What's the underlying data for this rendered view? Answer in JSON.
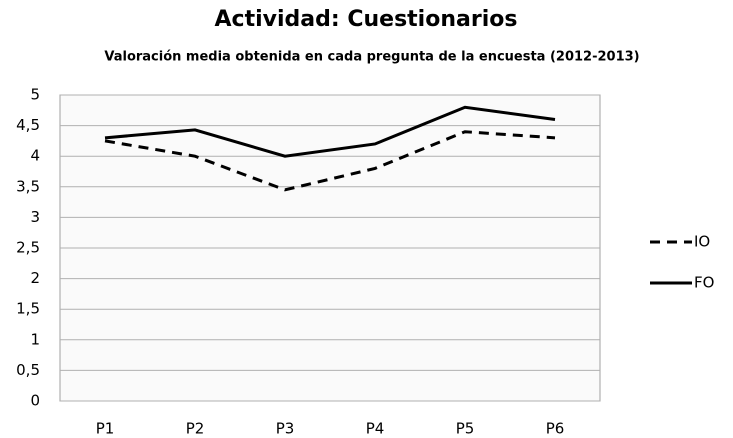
{
  "chart_data": {
    "type": "line",
    "title": "Actividad: Cuestionarios",
    "subtitle": "Valoración media obtenida en cada pregunta de la encuesta (2012-2013)",
    "categories": [
      "P1",
      "P2",
      "P3",
      "P4",
      "P5",
      "P6"
    ],
    "series": [
      {
        "name": "IO",
        "color": "#000000",
        "line_style": "dashed",
        "values": [
          4.25,
          4.0,
          3.45,
          3.8,
          4.4,
          4.3
        ]
      },
      {
        "name": "FO",
        "color": "#000000",
        "line_style": "solid",
        "values": [
          4.3,
          4.43,
          4.0,
          4.2,
          4.8,
          4.6
        ]
      }
    ],
    "ylim": [
      0,
      5
    ],
    "yticks": [
      0,
      {
        "value": 0.5,
        "label": "0,5"
      },
      1,
      {
        "value": 1.5,
        "label": "1,5"
      },
      2,
      {
        "value": 2.5,
        "label": "2,5"
      },
      3,
      {
        "value": 3.5,
        "label": "3,5"
      },
      4,
      {
        "value": 4.5,
        "label": "4,5"
      },
      5
    ],
    "grid": true,
    "legend": "right"
  }
}
